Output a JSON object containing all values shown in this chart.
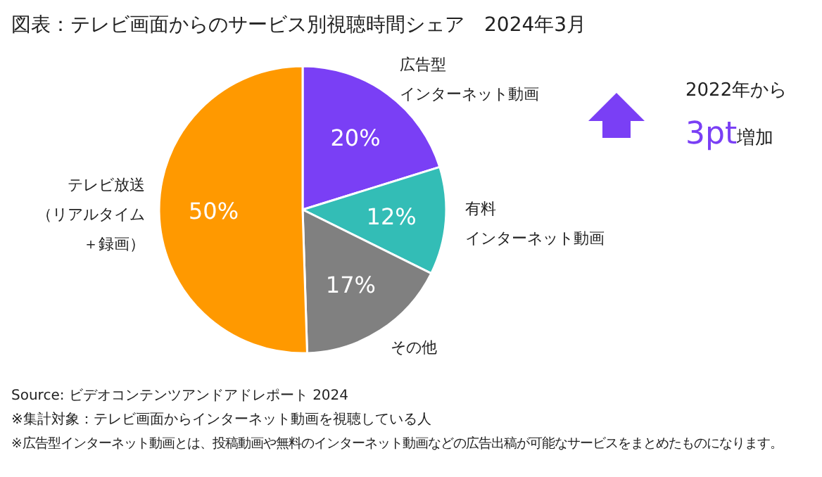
{
  "chart_data": {
    "type": "pie",
    "title": "図表：テレビ画面からのサービス別視聴時間シェア　2024年3月",
    "categories": [
      "広告型インターネット動画",
      "有料インターネット動画",
      "その他",
      "テレビ放送（リアルタイム＋録画）"
    ],
    "values": [
      20,
      12,
      17,
      50
    ],
    "value_labels": [
      "20%",
      "12%",
      "17%",
      "50%"
    ],
    "colors": [
      "#7a3ff5",
      "#33bdb6",
      "#808080",
      "#ff9900"
    ],
    "annotations": [
      "2022年から",
      "3pt",
      "増加",
      "Source: ビデオコンテンツアンドアドレポート 2024",
      "※集計対象：テレビ画面からインターネット動画を視聴している人",
      "※広告型インターネット動画とは、投稿動画や無料のインターネット動画などの広告出稿が可能なサービスをまとめたものになります。"
    ]
  }
}
